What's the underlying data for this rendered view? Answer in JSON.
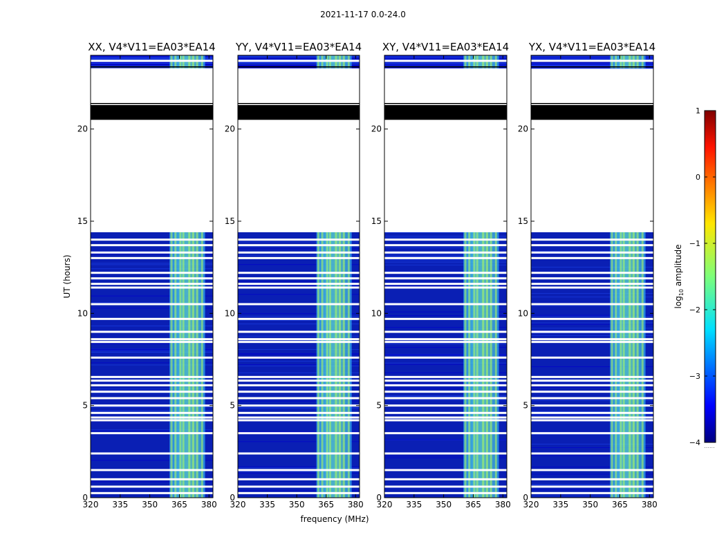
{
  "chart_data": {
    "type": "heatmap",
    "title": "2021-11-17 0.0-24.0",
    "xlabel": "frequency (MHz)",
    "ylabel": "UT (hours)",
    "xlim": [
      320,
      382
    ],
    "ylim": [
      0,
      24
    ],
    "xticks": [
      "320",
      "335",
      "350",
      "365",
      "380"
    ],
    "yticks": [
      "0",
      "5",
      "10",
      "15",
      "20"
    ],
    "panels": [
      {
        "title": "XX, V4*V11=EA03*EA14"
      },
      {
        "title": "YY, V4*V11=EA03*EA14"
      },
      {
        "title": "XY, V4*V11=EA03*EA14"
      },
      {
        "title": "YX, V4*V11=EA03*EA14"
      }
    ],
    "rfi_band_mhz": [
      360,
      378
    ],
    "rfi_columns_mhz": [
      361,
      363,
      365.5,
      367,
      370,
      372,
      374,
      376.5
    ],
    "data_ranges_hours": [
      [
        0,
        14.4
      ],
      [
        23.3,
        24
      ]
    ],
    "flagged_black_hours": [
      [
        20.5,
        21.3
      ]
    ],
    "blank_lines_hours": [
      0.25,
      0.6,
      1.0,
      1.5,
      2.4,
      3.5,
      4.2,
      4.35,
      4.6,
      5.0,
      5.4,
      5.75,
      6.1,
      6.35,
      6.55,
      7.6,
      8.45,
      8.6,
      9.0,
      9.7,
      10.5,
      11.4,
      11.6,
      11.9,
      12.2,
      13.0,
      13.3,
      13.7,
      14.0,
      23.7
    ],
    "colorbar": {
      "label": "log10 amplitude",
      "label_main": "log",
      "label_sub": "10",
      "label_rest": " amplitude",
      "ticks": [
        "1",
        "0",
        "−1",
        "−2",
        "−3",
        "−4"
      ],
      "tick_values": [
        1,
        0,
        -1,
        -2,
        -3,
        -4
      ],
      "range": [
        -4,
        1
      ],
      "colormap": "jet",
      "dotted_text": "......"
    },
    "colors": {
      "background_dark": "#0a1fb4",
      "band": "#3cd2f0",
      "band_peak": "#b4ff5a",
      "flag_black": "#000000"
    }
  }
}
